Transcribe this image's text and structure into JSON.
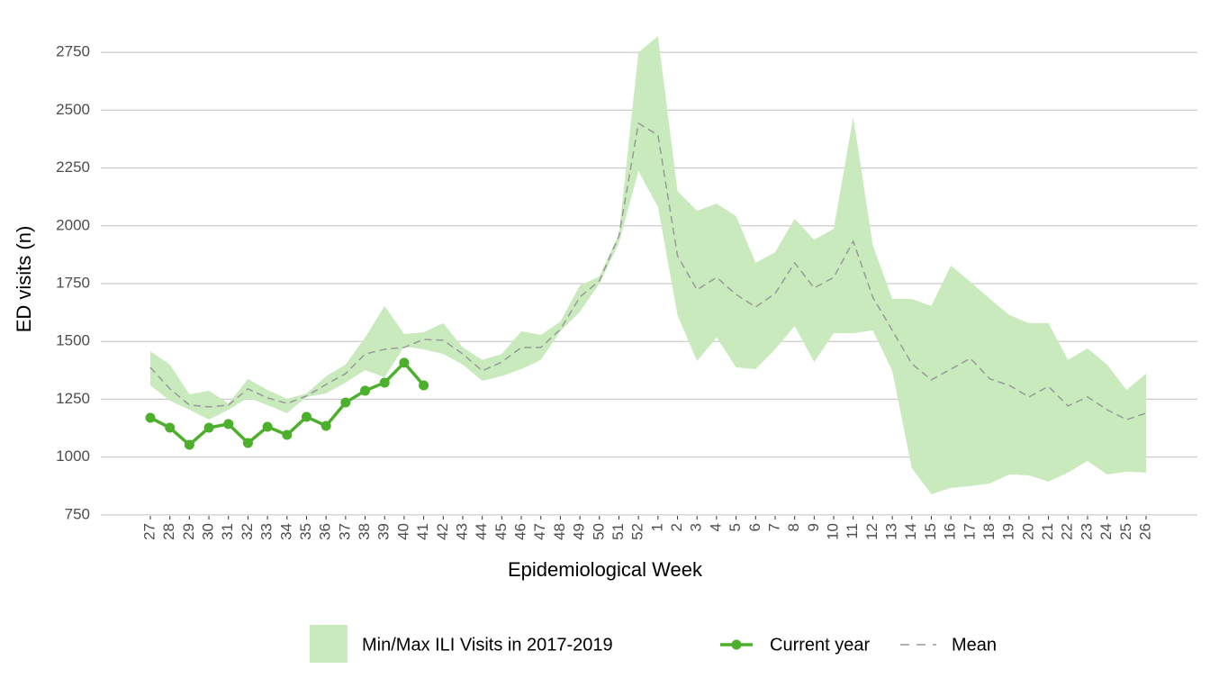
{
  "chart_data": {
    "type": "line",
    "xlabel": "Epidemiological Week",
    "ylabel": "ED visits (n)",
    "categories": [
      "27",
      "28",
      "29",
      "30",
      "31",
      "32",
      "33",
      "34",
      "35",
      "36",
      "37",
      "38",
      "39",
      "40",
      "41",
      "42",
      "43",
      "44",
      "45",
      "46",
      "47",
      "48",
      "49",
      "50",
      "51",
      "52",
      "1",
      "2",
      "3",
      "4",
      "5",
      "6",
      "7",
      "8",
      "9",
      "10",
      "11",
      "12",
      "13",
      "14",
      "15",
      "16",
      "17",
      "18",
      "19",
      "20",
      "21",
      "22",
      "23",
      "24",
      "25",
      "26"
    ],
    "series": [
      {
        "name": "Min/Max ILI Visits in 2017-2019",
        "color": "#c9eabd",
        "max": [
          1458,
          1400,
          1271,
          1287,
          1232,
          1338,
          1290,
          1252,
          1275,
          1350,
          1400,
          1517,
          1653,
          1532,
          1540,
          1579,
          1474,
          1420,
          1446,
          1544,
          1528,
          1586,
          1742,
          1781,
          1964,
          2750,
          2820,
          2150,
          2065,
          2096,
          2042,
          1840,
          1886,
          2030,
          1940,
          1987,
          2470,
          1917,
          1684,
          1684,
          1653,
          1828,
          1758,
          1684,
          1614,
          1579,
          1579,
          1420,
          1470,
          1400,
          1290,
          1361
        ],
        "min": [
          1310,
          1244,
          1205,
          1162,
          1205,
          1256,
          1225,
          1190,
          1260,
          1275,
          1322,
          1376,
          1345,
          1478,
          1466,
          1446,
          1400,
          1330,
          1350,
          1380,
          1420,
          1544,
          1629,
          1750,
          1925,
          2236,
          2081,
          1614,
          1415,
          1517,
          1388,
          1380,
          1466,
          1567,
          1411,
          1536,
          1536,
          1548,
          1373,
          952,
          840,
          867,
          875,
          886,
          925,
          921,
          894,
          933,
          983,
          925,
          937,
          933
        ]
      },
      {
        "name": "Current year",
        "color": "#4cb02c",
        "values": [
          1170,
          1127,
          1053,
          1127,
          1143,
          1061,
          1131,
          1096,
          1174,
          1135,
          1236,
          1287,
          1322,
          1408,
          1310,
          null,
          null,
          null,
          null,
          null,
          null,
          null,
          null,
          null,
          null,
          null,
          null,
          null,
          null,
          null,
          null,
          null,
          null,
          null,
          null,
          null,
          null,
          null,
          null,
          null,
          null,
          null,
          null,
          null,
          null,
          null,
          null,
          null,
          null,
          null,
          null,
          null
        ]
      },
      {
        "name": "Mean",
        "color": "#999999",
        "dashed": true,
        "values": [
          1388,
          1295,
          1225,
          1217,
          1225,
          1295,
          1256,
          1232,
          1264,
          1314,
          1361,
          1446,
          1466,
          1474,
          1509,
          1505,
          1446,
          1373,
          1411,
          1474,
          1474,
          1552,
          1692,
          1762,
          1956,
          2443,
          2392,
          1870,
          1723,
          1777,
          1703,
          1649,
          1707,
          1840,
          1731,
          1777,
          1933,
          1692,
          1548,
          1404,
          1334,
          1380,
          1427,
          1338,
          1310,
          1260,
          1306,
          1221,
          1260,
          1205,
          1162,
          1190
        ]
      }
    ],
    "ylim": [
      660,
      2840
    ],
    "yticks": [
      750,
      1000,
      1250,
      1500,
      1750,
      2000,
      2250,
      2500,
      2750
    ],
    "grid": true,
    "legend": "bottom"
  }
}
